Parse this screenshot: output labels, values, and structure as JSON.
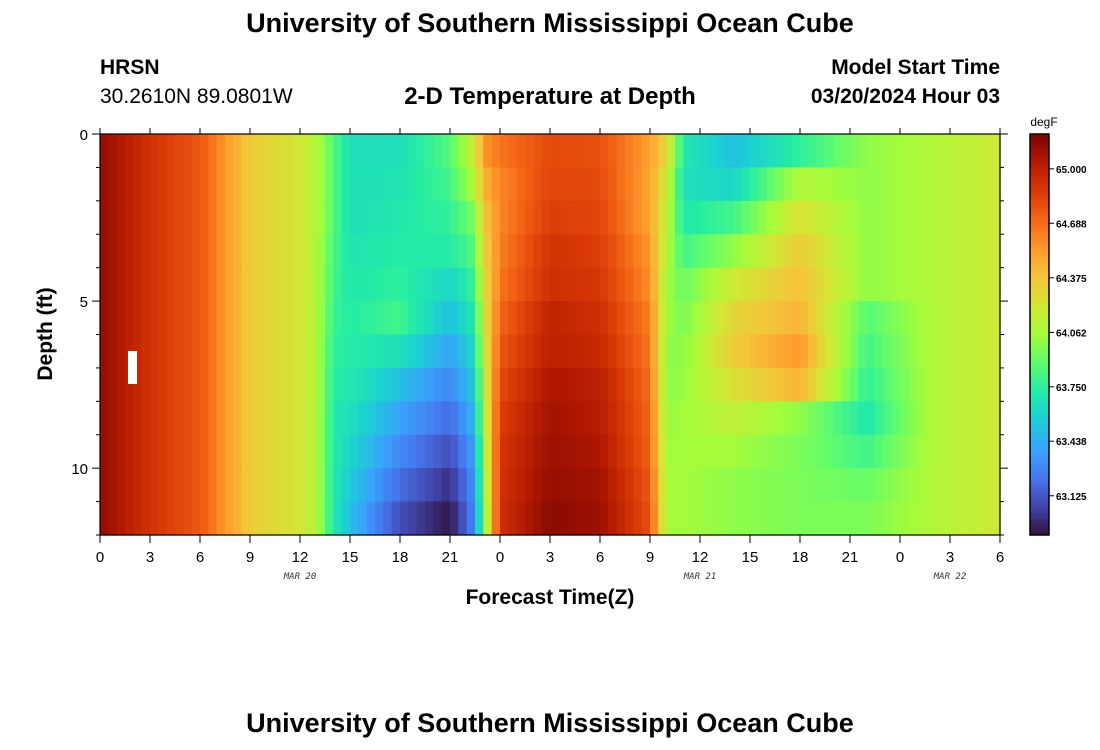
{
  "header": {
    "title": "University of Southern Mississippi Ocean Cube",
    "station_name": "HRSN",
    "station_coords": "30.2610N  89.0801W",
    "chart_title": "2-D Temperature at Depth",
    "model_start_label": "Model Start Time",
    "model_start_value": "03/20/2024 Hour 03"
  },
  "footer": {
    "title": "University of Southern Mississippi Ocean Cube"
  },
  "chart_data": {
    "type": "heatmap",
    "title": "2-D Temperature at Depth",
    "xlabel": "Forecast Time(Z)",
    "ylabel": "Depth (ft)",
    "x_tick_labels": [
      "0",
      "3",
      "6",
      "9",
      "12",
      "15",
      "18",
      "21",
      "0",
      "3",
      "6",
      "9",
      "12",
      "15",
      "18",
      "21",
      "0",
      "3",
      "6"
    ],
    "date_labels": [
      "MAR 20",
      "MAR 21",
      "MAR 22"
    ],
    "y_tick_labels": [
      "0",
      "5",
      "10"
    ],
    "ylim": [
      0,
      12
    ],
    "xlim_hours": [
      0,
      54
    ],
    "colorbar": {
      "unit": "degF",
      "ticks": [
        "65.000",
        "64.688",
        "64.375",
        "64.062",
        "63.750",
        "63.438",
        "63.125"
      ],
      "range": [
        62.9,
        65.2
      ]
    },
    "depths_ft": [
      0.5,
      1.5,
      2.5,
      3.5,
      4.5,
      5.5,
      6.5,
      7.5,
      8.5,
      9.5,
      10.5,
      11.5
    ],
    "time_keys_hours": [
      0,
      3,
      6,
      9,
      12,
      13,
      14,
      15,
      18,
      21,
      22.5,
      23,
      24,
      27,
      30,
      33,
      34,
      35,
      38,
      42,
      46,
      50,
      54
    ],
    "values_by_depth": [
      [
        65.13,
        64.9,
        64.75,
        64.35,
        64.22,
        64.1,
        63.85,
        63.65,
        63.65,
        63.85,
        64.2,
        64.55,
        64.65,
        64.8,
        64.78,
        64.52,
        64.3,
        63.7,
        63.5,
        63.75,
        64.0,
        64.1,
        64.2
      ],
      [
        65.13,
        64.9,
        64.75,
        64.35,
        64.22,
        64.1,
        63.85,
        63.65,
        63.68,
        63.8,
        64.1,
        64.45,
        64.6,
        64.82,
        64.8,
        64.5,
        64.2,
        63.65,
        63.6,
        64.1,
        64.0,
        64.1,
        64.2
      ],
      [
        65.13,
        64.9,
        64.75,
        64.35,
        64.22,
        64.1,
        63.85,
        63.65,
        63.7,
        63.76,
        63.95,
        64.35,
        64.6,
        64.85,
        64.82,
        64.5,
        64.15,
        63.7,
        63.8,
        64.25,
        64.0,
        64.1,
        64.2
      ],
      [
        65.13,
        64.9,
        64.75,
        64.35,
        64.22,
        64.1,
        63.82,
        63.68,
        63.72,
        63.72,
        63.85,
        64.3,
        64.62,
        64.9,
        64.85,
        64.55,
        64.1,
        63.8,
        64.0,
        64.35,
        64.0,
        64.1,
        64.2
      ],
      [
        65.13,
        64.9,
        64.75,
        64.35,
        64.22,
        64.1,
        63.8,
        63.7,
        63.75,
        63.6,
        63.78,
        64.25,
        64.65,
        64.92,
        64.88,
        64.58,
        64.05,
        63.9,
        64.2,
        64.4,
        64.0,
        64.1,
        64.2
      ],
      [
        65.13,
        64.9,
        64.75,
        64.35,
        64.22,
        64.1,
        63.78,
        63.72,
        63.8,
        63.5,
        63.7,
        64.2,
        64.7,
        64.98,
        64.92,
        64.62,
        64.05,
        63.95,
        64.3,
        64.45,
        63.85,
        64.1,
        64.2
      ],
      [
        65.13,
        64.9,
        64.75,
        64.35,
        64.22,
        64.1,
        63.75,
        63.72,
        63.65,
        63.4,
        63.62,
        64.15,
        64.75,
        65.0,
        64.95,
        64.65,
        64.0,
        64.0,
        64.35,
        64.55,
        63.8,
        64.1,
        64.2
      ],
      [
        65.13,
        64.9,
        64.75,
        64.35,
        64.22,
        64.1,
        63.72,
        63.7,
        63.5,
        63.3,
        63.55,
        64.1,
        64.8,
        65.05,
        65.0,
        64.68,
        64.0,
        64.02,
        64.25,
        64.45,
        63.75,
        64.1,
        64.2
      ],
      [
        65.13,
        64.9,
        64.75,
        64.35,
        64.22,
        64.1,
        63.7,
        63.65,
        63.4,
        63.2,
        63.48,
        64.05,
        64.85,
        65.08,
        65.02,
        64.7,
        64.02,
        64.05,
        64.15,
        64.0,
        63.7,
        64.1,
        64.2
      ],
      [
        65.13,
        64.9,
        64.75,
        64.35,
        64.22,
        64.1,
        63.7,
        63.6,
        63.3,
        63.1,
        63.4,
        64.0,
        64.88,
        65.1,
        65.05,
        64.72,
        64.04,
        64.05,
        64.05,
        63.95,
        63.8,
        64.1,
        64.2
      ],
      [
        65.13,
        64.9,
        64.75,
        64.35,
        64.22,
        64.1,
        63.7,
        63.55,
        63.2,
        63.0,
        63.35,
        63.95,
        64.9,
        65.12,
        65.08,
        64.75,
        64.05,
        64.05,
        64.0,
        63.95,
        63.9,
        64.1,
        64.2
      ],
      [
        65.13,
        64.9,
        64.75,
        64.35,
        64.22,
        64.1,
        63.7,
        63.5,
        63.1,
        62.92,
        63.3,
        63.9,
        64.92,
        65.15,
        65.1,
        64.78,
        64.06,
        64.05,
        64.0,
        63.95,
        63.95,
        64.1,
        64.2
      ]
    ]
  }
}
